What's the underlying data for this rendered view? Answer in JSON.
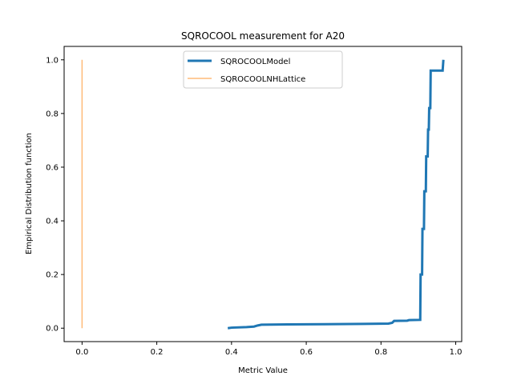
{
  "chart_data": {
    "type": "line",
    "title": "SQROCOOL measurement for A20",
    "xlabel": "Metric Value",
    "ylabel": "Empirical Distribution function",
    "xlim": [
      -0.048,
      1.016
    ],
    "ylim": [
      -0.05,
      1.05
    ],
    "xticks": [
      0.0,
      0.2,
      0.4,
      0.6,
      0.8,
      1.0
    ],
    "xtick_labels": [
      "0.0",
      "0.2",
      "0.4",
      "0.6",
      "0.8",
      "1.0"
    ],
    "yticks": [
      0.0,
      0.2,
      0.4,
      0.6,
      0.8,
      1.0
    ],
    "ytick_labels": [
      "0.0",
      "0.2",
      "0.4",
      "0.6",
      "0.8",
      "1.0"
    ],
    "grid": false,
    "legend_position": "top-center",
    "series": [
      {
        "name": "SQROCOOLModel",
        "color": "#1f77b4",
        "style": "thick",
        "x": [
          0.39,
          0.4,
          0.44,
          0.46,
          0.47,
          0.48,
          0.55,
          0.65,
          0.75,
          0.82,
          0.83,
          0.835,
          0.87,
          0.875,
          0.905,
          0.906,
          0.91,
          0.911,
          0.915,
          0.916,
          0.92,
          0.921,
          0.925,
          0.926,
          0.928,
          0.929,
          0.932,
          0.933,
          0.965,
          0.966,
          0.967
        ],
        "y": [
          0.0,
          0.002,
          0.004,
          0.006,
          0.01,
          0.013,
          0.014,
          0.015,
          0.016,
          0.017,
          0.02,
          0.027,
          0.028,
          0.03,
          0.031,
          0.2,
          0.2,
          0.37,
          0.37,
          0.51,
          0.51,
          0.64,
          0.64,
          0.74,
          0.74,
          0.82,
          0.82,
          0.96,
          0.96,
          0.98,
          1.0
        ]
      },
      {
        "name": "SQROCOOLNHLattice",
        "color": "#ffbb78",
        "style": "thin",
        "x": [
          0.0,
          0.0
        ],
        "y": [
          0.0,
          1.0
        ]
      }
    ]
  }
}
